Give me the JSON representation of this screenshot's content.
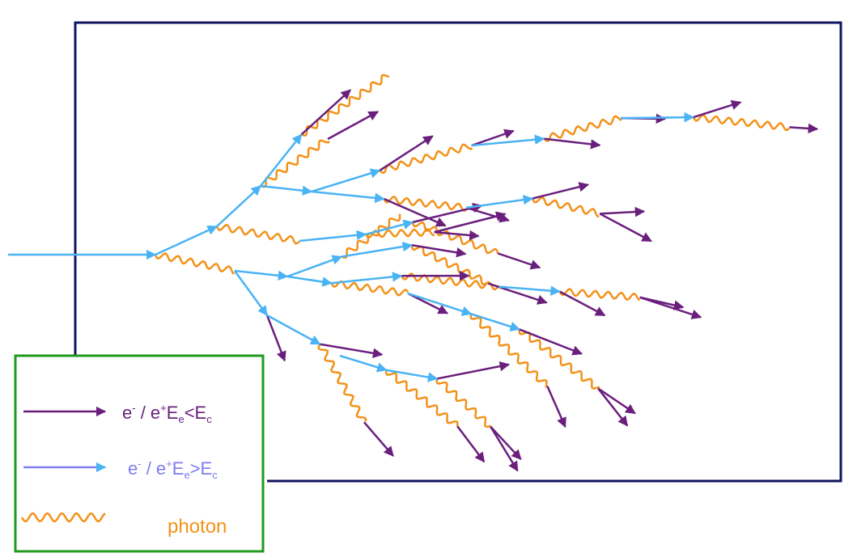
{
  "colors": {
    "detector_frame": "#10145e",
    "legend_frame": "#1f9a1f",
    "electron_high": "#4ab3f4",
    "electron_low": "#6a1f7d",
    "photon": "#f39219",
    "label_low": "#6a1f7d",
    "label_high": "#7d7df0",
    "label_photon": "#f39219"
  },
  "legend": {
    "low_energy": {
      "particle": "e",
      "sign1": "-",
      "sep": " / e",
      "sign2": "+",
      "E": "E",
      "sub1": "e",
      "rel": "<",
      "E2": "E",
      "sub2": "c"
    },
    "high_energy": {
      "particle": "e",
      "sign1": "-",
      "sep": " / e",
      "sign2": "+",
      "E": "E",
      "sub1": "e",
      "rel": ">",
      "E2": "E",
      "sub2": "c"
    },
    "photon": "photon"
  },
  "icons": [
    "arrow-low-energy-icon",
    "arrow-high-energy-icon",
    "wavy-photon-icon"
  ]
}
